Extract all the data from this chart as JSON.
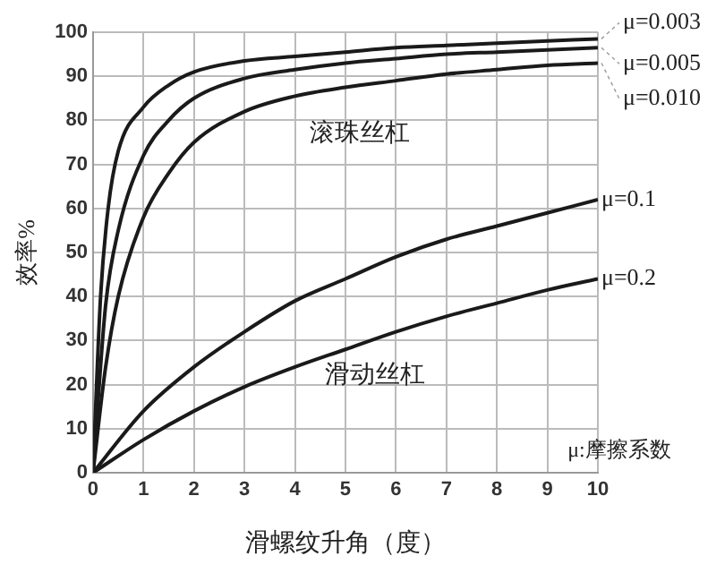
{
  "chart_data": {
    "type": "line",
    "xlabel": "滑螺纹升角（度）",
    "ylabel": "效率%",
    "xlim": [
      0,
      10
    ],
    "xticks": [
      0,
      1,
      2,
      3,
      4,
      5,
      6,
      7,
      8,
      9,
      10
    ],
    "ylim": [
      0,
      100
    ],
    "yticks": [
      0,
      10,
      20,
      30,
      40,
      50,
      60,
      70,
      80,
      90,
      100
    ],
    "grid": true,
    "legend": false,
    "marker": "none",
    "line_style": "solid",
    "annotations": [
      "滚珠丝杠",
      "滑动丝杠",
      "μ:摩擦系数"
    ],
    "series": [
      {
        "name": "μ=0.003",
        "color": "#1a1a1a",
        "x": [
          0,
          0.15,
          0.3,
          0.5,
          1,
          1.5,
          2,
          3,
          4,
          5,
          6,
          7,
          8,
          9,
          10
        ],
        "values": [
          0,
          40,
          60,
          73,
          83,
          88,
          91,
          93.5,
          94.5,
          95.5,
          96.5,
          97,
          97.5,
          98,
          98.5
        ]
      },
      {
        "name": "μ=0.005",
        "color": "#1a1a1a",
        "x": [
          0,
          0.25,
          0.5,
          1,
          1.5,
          2,
          3,
          4,
          5,
          6,
          7,
          8,
          9,
          10
        ],
        "values": [
          0,
          38,
          55,
          72,
          80,
          85,
          89.5,
          91.5,
          93,
          94,
          95,
          95.5,
          96,
          96.5
        ]
      },
      {
        "name": "μ=0.010",
        "color": "#1a1a1a",
        "x": [
          0,
          0.25,
          0.5,
          1,
          1.5,
          2,
          3,
          4,
          5,
          6,
          7,
          8,
          9,
          10
        ],
        "values": [
          0,
          24,
          40,
          58,
          68,
          75,
          82,
          85.5,
          87.5,
          89,
          90.5,
          91.5,
          92.5,
          93
        ]
      },
      {
        "name": "μ=0.1",
        "color": "#1a1a1a",
        "x": [
          0,
          1,
          2,
          3,
          4,
          5,
          6,
          7,
          8,
          9,
          10
        ],
        "values": [
          0,
          14,
          24,
          32,
          39,
          44,
          49,
          53,
          56,
          59,
          62
        ]
      },
      {
        "name": "μ=0.2",
        "color": "#1a1a1a",
        "x": [
          0,
          1,
          2,
          3,
          4,
          5,
          6,
          7,
          8,
          9,
          10
        ],
        "values": [
          0,
          7.5,
          14,
          19.5,
          24,
          28,
          32,
          35.5,
          38.5,
          41.5,
          44
        ]
      }
    ]
  }
}
